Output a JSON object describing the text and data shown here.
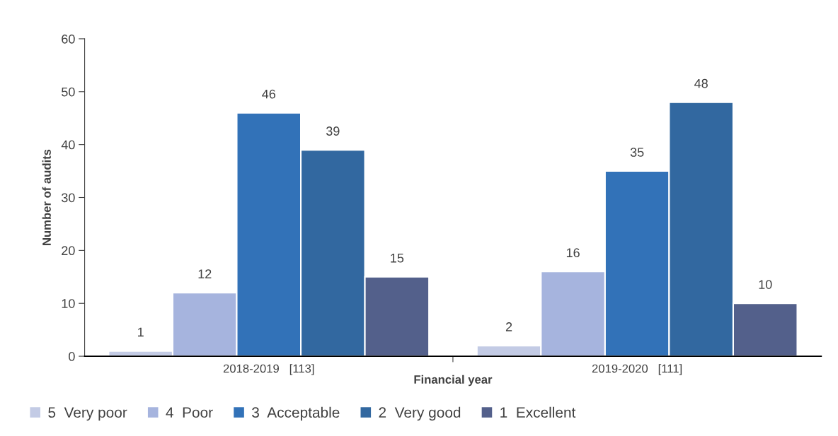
{
  "chart_data": {
    "type": "bar",
    "xlabel": "Financial year",
    "ylabel": "Number of audits",
    "categories": [
      "2018-2019   [113]",
      "2019-2020   [111]"
    ],
    "series": [
      {
        "name": "5  Very poor",
        "color": "#c3cbe5",
        "values": [
          1,
          2
        ]
      },
      {
        "name": "4  Poor",
        "color": "#a6b4de",
        "values": [
          12,
          16
        ]
      },
      {
        "name": "3  Acceptable",
        "color": "#3272b8",
        "values": [
          46,
          35
        ]
      },
      {
        "name": "2  Very good",
        "color": "#3268a0",
        "values": [
          39,
          48
        ]
      },
      {
        "name": "1  Excellent",
        "color": "#53608b",
        "values": [
          15,
          10
        ]
      }
    ],
    "ylim": [
      0,
      60
    ],
    "yticks": [
      0,
      10,
      20,
      30,
      40,
      50,
      60
    ],
    "grid": false,
    "legend": "bottom left",
    "data_labels": true
  }
}
